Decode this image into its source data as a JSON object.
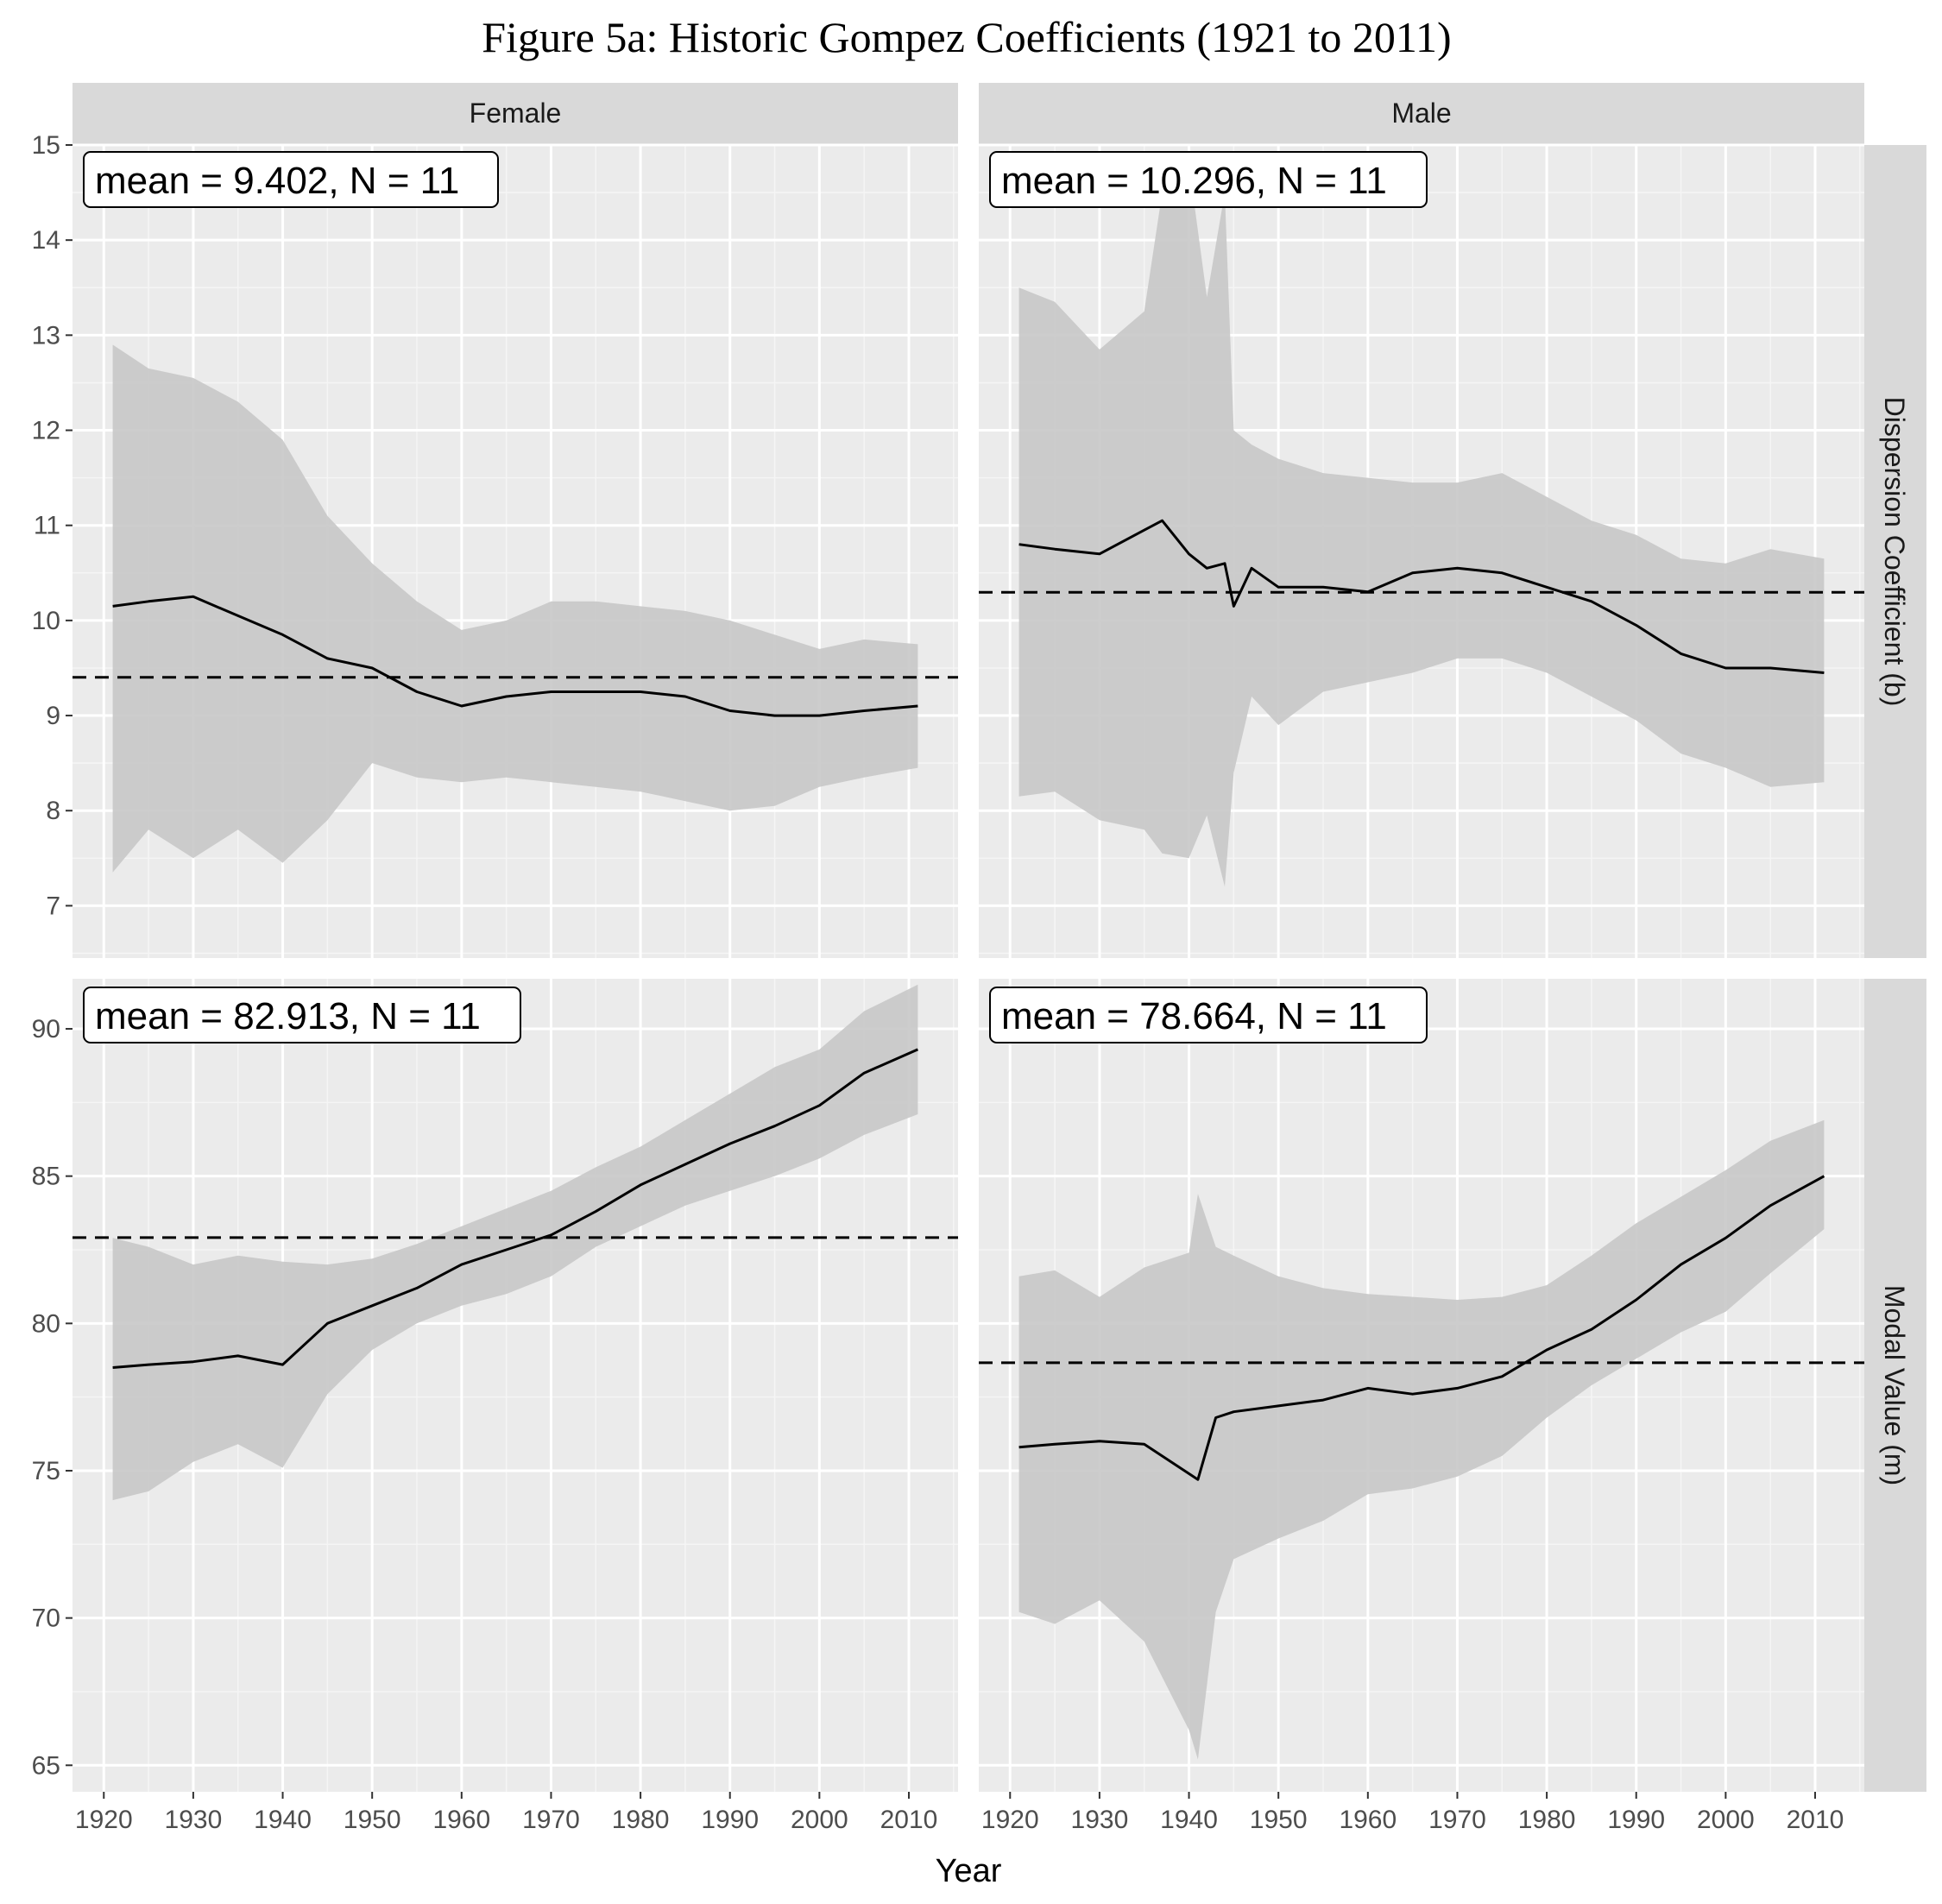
{
  "chart_data": {
    "type": "line",
    "title": "Figure 5a: Historic Gompez Coefficients (1921 to 2011)",
    "xlabel": "Year",
    "facet_columns": [
      "Female",
      "Male"
    ],
    "facet_rows": [
      "Dispersion Coefficient (b)",
      "Modal Value (m)"
    ],
    "x_ticks": [
      1920,
      1930,
      1940,
      1950,
      1960,
      1970,
      1980,
      1990,
      2000,
      2010
    ],
    "panels": [
      {
        "column": "Female",
        "row": "Dispersion Coefficient (b)",
        "annotation": "mean = 9.402, N = 11",
        "mean": 9.402,
        "ylim": [
          6.45,
          15.0
        ],
        "y_ticks": [
          7,
          8,
          9,
          10,
          11,
          12,
          13,
          14,
          15
        ],
        "x": [
          1921,
          1925,
          1930,
          1935,
          1940,
          1945,
          1950,
          1955,
          1960,
          1965,
          1970,
          1975,
          1980,
          1985,
          1990,
          1995,
          2000,
          2005,
          2011
        ],
        "value": [
          10.15,
          10.2,
          10.25,
          10.05,
          9.85,
          9.6,
          9.5,
          9.25,
          9.1,
          9.2,
          9.25,
          9.25,
          9.25,
          9.2,
          9.05,
          9.0,
          9.0,
          9.05,
          9.1
        ],
        "lower": [
          7.35,
          7.8,
          7.5,
          7.8,
          7.45,
          7.9,
          8.5,
          8.35,
          8.3,
          8.35,
          8.3,
          8.25,
          8.2,
          8.1,
          8.0,
          8.05,
          8.25,
          8.35,
          8.45
        ],
        "upper": [
          12.9,
          12.65,
          12.55,
          12.3,
          11.9,
          11.1,
          10.6,
          10.2,
          9.9,
          10.0,
          10.2,
          10.2,
          10.15,
          10.1,
          10.0,
          9.85,
          9.7,
          9.8,
          9.75
        ]
      },
      {
        "column": "Male",
        "row": "Dispersion Coefficient (b)",
        "annotation": "mean = 10.296, N = 11",
        "mean": 10.296,
        "ylim": [
          6.45,
          15.0
        ],
        "y_ticks": [
          7,
          8,
          9,
          10,
          11,
          12,
          13,
          14,
          15
        ],
        "x": [
          1921,
          1925,
          1930,
          1935,
          1937,
          1940,
          1942,
          1944,
          1945,
          1947,
          1950,
          1955,
          1960,
          1965,
          1970,
          1975,
          1980,
          1985,
          1990,
          1995,
          2000,
          2005,
          2011
        ],
        "value": [
          10.8,
          10.75,
          10.7,
          10.95,
          11.05,
          10.7,
          10.55,
          10.6,
          10.15,
          10.55,
          10.35,
          10.35,
          10.3,
          10.5,
          10.55,
          10.5,
          10.35,
          10.2,
          9.95,
          9.65,
          9.5,
          9.5,
          9.45
        ],
        "lower": [
          8.15,
          8.2,
          7.9,
          7.8,
          7.55,
          7.5,
          7.95,
          7.2,
          8.4,
          9.2,
          8.9,
          9.25,
          9.35,
          9.45,
          9.6,
          9.6,
          9.45,
          9.2,
          8.95,
          8.6,
          8.45,
          8.25,
          8.3
        ],
        "upper": [
          13.5,
          13.35,
          12.85,
          13.25,
          14.5,
          14.8,
          13.4,
          14.5,
          12.0,
          11.85,
          11.7,
          11.55,
          11.5,
          11.45,
          11.45,
          11.55,
          11.3,
          11.05,
          10.9,
          10.65,
          10.6,
          10.75,
          10.65
        ]
      },
      {
        "column": "Female",
        "row": "Modal Value (m)",
        "annotation": "mean = 82.913, N = 11",
        "mean": 82.913,
        "ylim": [
          64.1,
          91.7
        ],
        "y_ticks": [
          65,
          70,
          75,
          80,
          85,
          90
        ],
        "x": [
          1921,
          1925,
          1930,
          1935,
          1940,
          1945,
          1950,
          1955,
          1960,
          1965,
          1970,
          1975,
          1980,
          1985,
          1990,
          1995,
          2000,
          2005,
          2011
        ],
        "value": [
          78.5,
          78.6,
          78.7,
          78.9,
          78.6,
          80.0,
          80.6,
          81.2,
          82.0,
          82.5,
          83.0,
          83.8,
          84.7,
          85.4,
          86.1,
          86.7,
          87.4,
          88.5,
          89.3
        ],
        "lower": [
          74.0,
          74.3,
          75.3,
          75.9,
          75.1,
          77.6,
          79.1,
          80.0,
          80.6,
          81.0,
          81.6,
          82.6,
          83.3,
          84.0,
          84.5,
          85.0,
          85.6,
          86.4,
          87.1
        ],
        "upper": [
          82.9,
          82.6,
          82.0,
          82.3,
          82.1,
          82.0,
          82.2,
          82.7,
          83.3,
          83.9,
          84.5,
          85.3,
          86.0,
          86.9,
          87.8,
          88.7,
          89.3,
          90.6,
          91.5
        ]
      },
      {
        "column": "Male",
        "row": "Modal Value (m)",
        "annotation": "mean = 78.664, N = 11",
        "mean": 78.664,
        "ylim": [
          64.1,
          91.7
        ],
        "y_ticks": [
          65,
          70,
          75,
          80,
          85,
          90
        ],
        "x": [
          1921,
          1925,
          1930,
          1935,
          1940,
          1941,
          1943,
          1945,
          1950,
          1955,
          1960,
          1965,
          1970,
          1975,
          1980,
          1985,
          1990,
          1995,
          2000,
          2005,
          2011
        ],
        "value": [
          75.8,
          75.9,
          76.0,
          75.9,
          74.9,
          74.7,
          76.8,
          77.0,
          77.2,
          77.4,
          77.8,
          77.6,
          77.8,
          78.2,
          79.1,
          79.8,
          80.8,
          82.0,
          82.9,
          84.0,
          85.0
        ],
        "lower": [
          70.2,
          69.8,
          70.6,
          69.2,
          66.2,
          65.2,
          70.2,
          72.0,
          72.7,
          73.3,
          74.2,
          74.4,
          74.8,
          75.5,
          76.8,
          77.9,
          78.8,
          79.7,
          80.4,
          81.7,
          83.2
        ],
        "upper": [
          81.6,
          81.8,
          80.9,
          81.9,
          82.4,
          84.4,
          82.6,
          82.3,
          81.6,
          81.2,
          81.0,
          80.9,
          80.8,
          80.9,
          81.3,
          82.3,
          83.4,
          84.3,
          85.2,
          86.2,
          86.9
        ]
      }
    ]
  },
  "colors": {
    "panel_background": "#ebebeb",
    "grid_major": "#ffffff",
    "grid_minor": "#f5f5f5",
    "ribbon": "#c8c8c8",
    "line": "#000000",
    "strip_background": "#d9d9d9"
  }
}
